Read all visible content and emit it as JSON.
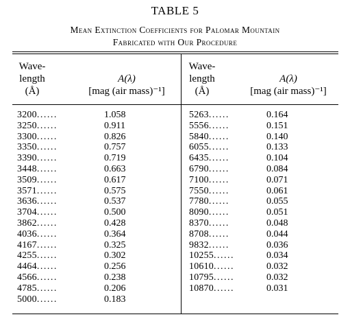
{
  "table": {
    "title": "TABLE 5",
    "caption_line1": "Mean Extinction Coefficients for Palomar Mountain",
    "caption_line2": "Fabricated with Our Procedure",
    "headers": {
      "wavelength_l1": "Wave-",
      "wavelength_l2": "length",
      "wavelength_unit": "(Å)",
      "coef_l1": "A(λ)",
      "coef_l2": "[mag (air mass)⁻¹]"
    },
    "left_rows": [
      {
        "wl": "3200",
        "val": "1.058"
      },
      {
        "wl": "3250",
        "val": "0.911"
      },
      {
        "wl": "3300",
        "val": "0.826"
      },
      {
        "wl": "3350",
        "val": "0.757"
      },
      {
        "wl": "3390",
        "val": "0.719"
      },
      {
        "wl": "3448",
        "val": "0.663"
      },
      {
        "wl": "3509",
        "val": "0.617"
      },
      {
        "wl": "3571",
        "val": "0.575"
      },
      {
        "wl": "3636",
        "val": "0.537"
      },
      {
        "wl": "3704",
        "val": "0.500"
      },
      {
        "wl": "3862",
        "val": "0.428"
      },
      {
        "wl": "4036",
        "val": "0.364"
      },
      {
        "wl": "4167",
        "val": "0.325"
      },
      {
        "wl": "4255",
        "val": "0.302"
      },
      {
        "wl": "4464",
        "val": "0.256"
      },
      {
        "wl": "4566",
        "val": "0.238"
      },
      {
        "wl": "4785",
        "val": "0.206"
      },
      {
        "wl": "5000",
        "val": "0.183"
      }
    ],
    "right_rows": [
      {
        "wl": "5263",
        "val": "0.164"
      },
      {
        "wl": "5556",
        "val": "0.151"
      },
      {
        "wl": "5840",
        "val": "0.140"
      },
      {
        "wl": "6055",
        "val": "0.133"
      },
      {
        "wl": "6435",
        "val": "0.104"
      },
      {
        "wl": "6790",
        "val": "0.084"
      },
      {
        "wl": "7100",
        "val": "0.071"
      },
      {
        "wl": "7550",
        "val": "0.061"
      },
      {
        "wl": "7780",
        "val": "0.055"
      },
      {
        "wl": "8090",
        "val": "0.051"
      },
      {
        "wl": "8370",
        "val": "0.048"
      },
      {
        "wl": "8708",
        "val": "0.044"
      },
      {
        "wl": "9832",
        "val": "0.036"
      },
      {
        "wl": "10255",
        "val": "0.034"
      },
      {
        "wl": "10610",
        "val": "0.032"
      },
      {
        "wl": "10795",
        "val": "0.032"
      },
      {
        "wl": "10870",
        "val": "0.031"
      }
    ]
  }
}
